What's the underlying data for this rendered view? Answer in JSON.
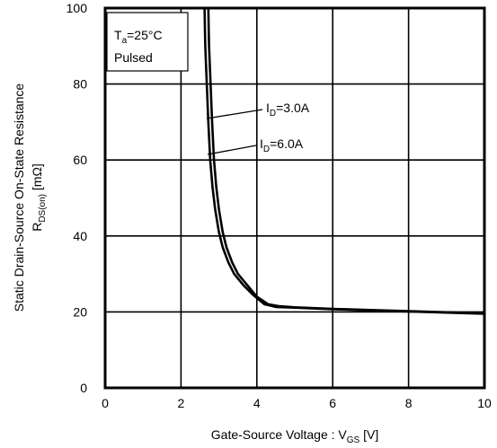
{
  "chart_data": {
    "type": "line",
    "title": "",
    "xlim": [
      0,
      10
    ],
    "ylim": [
      0,
      100
    ],
    "x_ticks": [
      0,
      2,
      4,
      6,
      8,
      10
    ],
    "y_ticks": [
      0,
      20,
      40,
      60,
      80,
      100
    ],
    "x_tick_labels": [
      "0",
      "2",
      "4",
      "6",
      "8",
      "10"
    ],
    "y_tick_labels": [
      "0",
      "20",
      "40",
      "60",
      "80",
      "100"
    ],
    "grid": true,
    "xlabel": {
      "text": "Gate-Source Voltage : V",
      "sub": "GS",
      "unit": " [V]"
    },
    "ylabel_line1": "Static Drain-Source On-State Resistance",
    "ylabel_line2": {
      "text": "R",
      "sub": "DS(on)",
      "unit": " [mΩ]"
    },
    "conditions": {
      "line1": {
        "text": "T",
        "sub": "a",
        "rest": "=25°C"
      },
      "line2": "Pulsed"
    },
    "series": [
      {
        "name": {
          "text": "I",
          "sub": "D",
          "rest": "=3.0A"
        },
        "x": [
          2.72,
          2.74,
          2.78,
          2.82,
          2.87,
          2.93,
          3.0,
          3.1,
          3.2,
          3.35,
          3.5,
          3.75,
          4.0,
          4.3,
          4.6,
          5.0,
          6.0,
          7.0,
          8.0,
          9.0,
          10.0
        ],
        "values": [
          100,
          90,
          80,
          70,
          60,
          53,
          47,
          41,
          37,
          33,
          30,
          27,
          24,
          22,
          21.5,
          21.2,
          20.8,
          20.5,
          20.2,
          19.9,
          19.6
        ]
      },
      {
        "name": {
          "text": "I",
          "sub": "D",
          "rest": "=6.0A"
        },
        "x": [
          2.62,
          2.64,
          2.68,
          2.72,
          2.77,
          2.83,
          2.9,
          3.0,
          3.1,
          3.25,
          3.4,
          3.65,
          3.9,
          4.2,
          4.5,
          5.0,
          6.0,
          7.0,
          8.0,
          9.0,
          10.0
        ],
        "values": [
          100,
          90,
          80,
          70,
          60,
          53,
          47,
          41,
          37,
          33,
          30,
          27,
          24.5,
          22,
          21.3,
          21.1,
          20.7,
          20.4,
          20.1,
          19.8,
          19.5
        ]
      }
    ],
    "colors": {
      "line": "#000000",
      "grid": "#000000",
      "background": "#ffffff"
    }
  }
}
